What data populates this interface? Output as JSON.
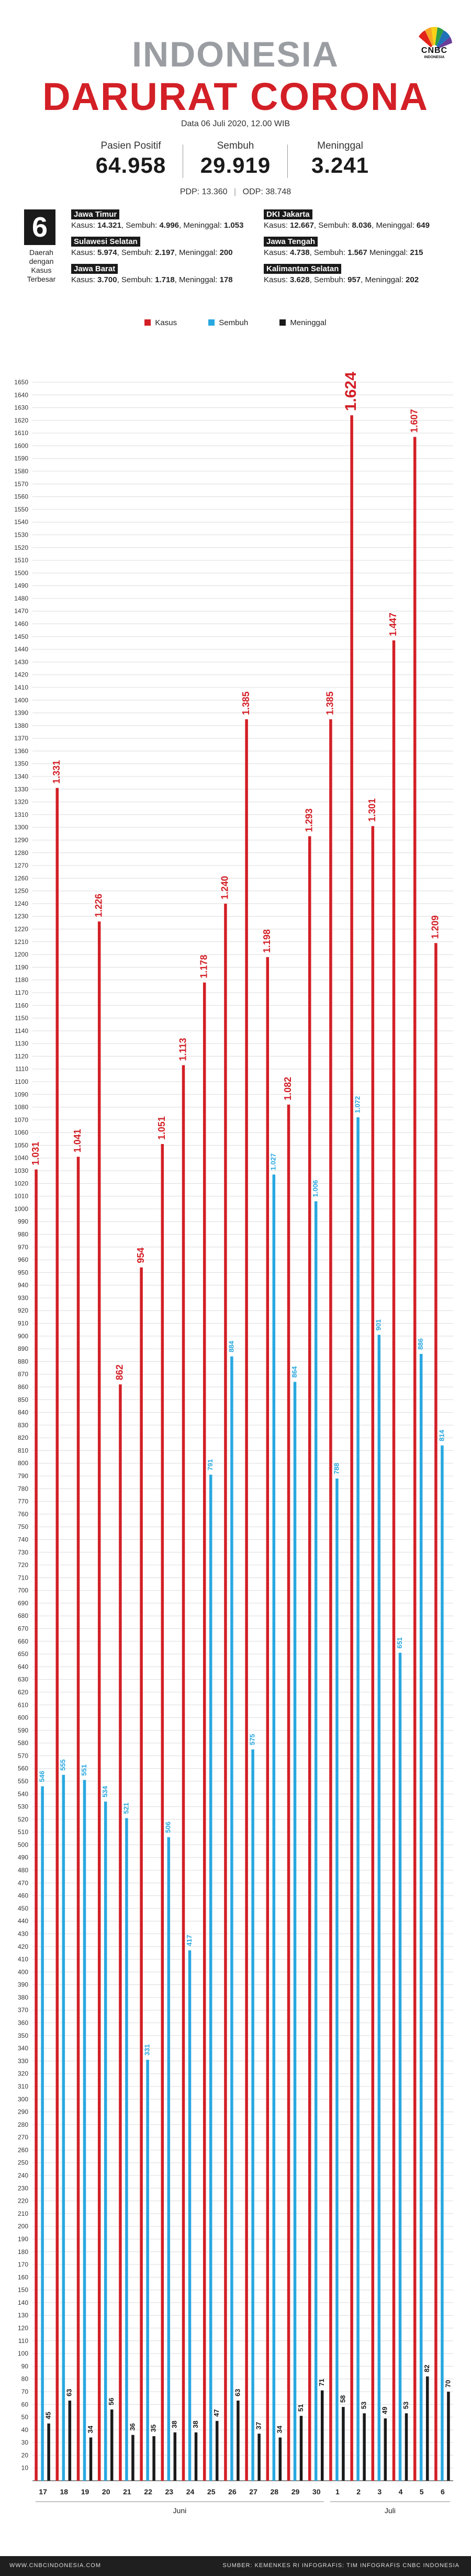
{
  "header": {
    "title_line1": "INDONESIA",
    "title_line2": "DARURAT CORONA",
    "date": "Data 06 Juli 2020, 12.00 WIB",
    "logo": "CNBC",
    "logo_sub": "INDONESIA"
  },
  "stats": [
    {
      "label": "Pasien Positif",
      "value": "64.958"
    },
    {
      "label": "Sembuh",
      "value": "29.919"
    },
    {
      "label": "Meninggal",
      "value": "3.241"
    }
  ],
  "sub_stats": {
    "pdp": "PDP: 13.360",
    "odp": "ODP: 38.748"
  },
  "regions_block": {
    "count": "6",
    "caption": [
      "Daerah",
      "dengan",
      "Kasus",
      "Terbesar"
    ]
  },
  "regions": [
    {
      "name": "Jawa Timur",
      "kasus_label": "Kasus: ",
      "kasus": "14.321",
      "sembuh_label": ", Sembuh: ",
      "sembuh": "4.996",
      "meninggal_label": ", Meninggal: ",
      "meninggal": "1.053"
    },
    {
      "name": "DKI Jakarta",
      "kasus_label": "Kasus: ",
      "kasus": "12.667",
      "sembuh_label": ", Sembuh: ",
      "sembuh": "8.036",
      "meninggal_label": ", Meninggal: ",
      "meninggal": "649"
    },
    {
      "name": "Sulawesi Selatan",
      "kasus_label": "Kasus: ",
      "kasus": "5.974",
      "sembuh_label": ", Sembuh: ",
      "sembuh": "2.197",
      "meninggal_label": ", Meninggal: ",
      "meninggal": "200"
    },
    {
      "name": "Jawa Tengah",
      "kasus_label": "Kasus: ",
      "kasus": "4.738",
      "sembuh_label": ", Sembuh: ",
      "sembuh": "1.567",
      "meninggal_label": " Meninggal: ",
      "meninggal": "215"
    },
    {
      "name": "Jawa Barat",
      "kasus_label": "Kasus: ",
      "kasus": "3.700",
      "sembuh_label": ", Sembuh: ",
      "sembuh": "1.718",
      "meninggal_label": ", Meninggal: ",
      "meninggal": "178"
    },
    {
      "name": "Kalimantan Selatan",
      "kasus_label": "Kasus: ",
      "kasus": "3.628",
      "sembuh_label": ", Sembuh: ",
      "sembuh": "957",
      "meninggal_label": ", Meninggal: ",
      "meninggal": "202"
    }
  ],
  "legend": [
    {
      "name": "Kasus",
      "color": "#d31f26"
    },
    {
      "name": "Sembuh",
      "color": "#29a8e0"
    },
    {
      "name": "Meninggal",
      "color": "#1a1a1a"
    }
  ],
  "chart_data": {
    "type": "bar",
    "categories": [
      "17",
      "18",
      "19",
      "20",
      "21",
      "22",
      "23",
      "24",
      "25",
      "26",
      "27",
      "28",
      "29",
      "30",
      "1",
      "2",
      "3",
      "4",
      "5",
      "6"
    ],
    "month_groups": [
      {
        "label": "Juni",
        "from": 0,
        "to": 13
      },
      {
        "label": "Juli",
        "from": 14,
        "to": 19
      }
    ],
    "series": [
      {
        "name": "Kasus",
        "color": "#d31f26",
        "values": [
          1031,
          1331,
          1041,
          1226,
          862,
          954,
          1051,
          1113,
          1178,
          1240,
          1385,
          1198,
          1082,
          1293,
          1385,
          1624,
          1301,
          1447,
          1607,
          1209
        ],
        "labels": [
          "1.031",
          "1.331",
          "1.041",
          "1.226",
          "862",
          "954",
          "1.051",
          "1.113",
          "1.178",
          "1.240",
          "1.385",
          "1.198",
          "1.082",
          "1.293",
          "1.385",
          "1.624",
          "1.301",
          "1.447",
          "1.607",
          "1.209"
        ]
      },
      {
        "name": "Sembuh",
        "color": "#29a8e0",
        "values": [
          546,
          555,
          551,
          534,
          521,
          331,
          506,
          417,
          791,
          884,
          575,
          1027,
          864,
          1006,
          788,
          1072,
          901,
          651,
          886,
          814
        ],
        "labels": [
          "546",
          "555",
          "551",
          "534",
          "521",
          "331",
          "506",
          "417",
          "791",
          "884",
          "575",
          "1.027",
          "864",
          "1.006",
          "788",
          "1.072",
          "901",
          "651",
          "886",
          "814"
        ]
      },
      {
        "name": "Meninggal",
        "color": "#1a1a1a",
        "values": [
          45,
          63,
          34,
          56,
          36,
          35,
          38,
          38,
          47,
          63,
          37,
          34,
          51,
          71,
          58,
          53,
          49,
          53,
          82,
          70
        ],
        "labels": [
          "45",
          "63",
          "34",
          "56",
          "36",
          "35",
          "38",
          "38",
          "47",
          "63",
          "37",
          "34",
          "51",
          "71",
          "58",
          "53",
          "49",
          "53",
          "82",
          "70"
        ]
      }
    ],
    "ylim": [
      0,
      1650
    ],
    "ytick_step": 10,
    "grid": true,
    "legend_position": "top"
  },
  "footer": {
    "left": "WWW.CNBCINDONESIA.COM",
    "right": "SUMBER: KEMENKES RI   INFOGRAFIS: TIM INFOGRAFIS CNBC INDONESIA"
  }
}
